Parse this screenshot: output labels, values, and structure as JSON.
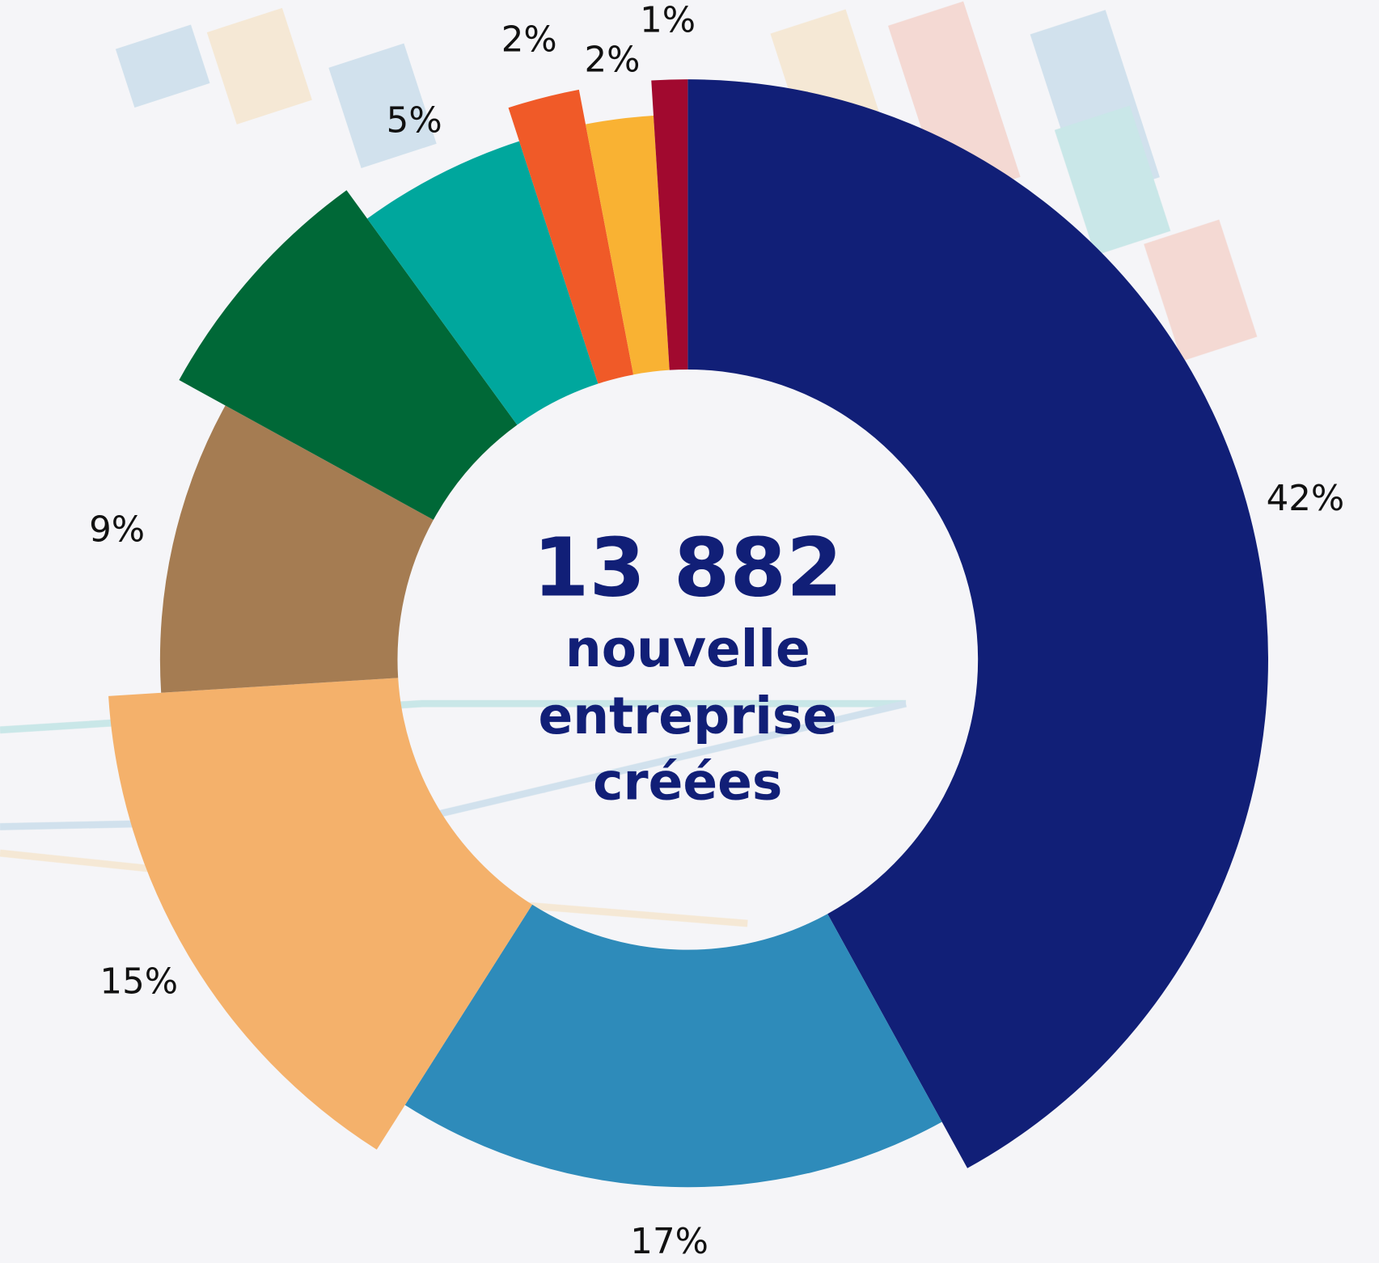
{
  "chart_data": {
    "type": "donut",
    "values": [
      42,
      17,
      15,
      9,
      7,
      5,
      2,
      2,
      1
    ],
    "value_labels": [
      "42%",
      "17%",
      "15%",
      "9%",
      null,
      "5%",
      "2%",
      "2%",
      "1%"
    ],
    "colors": [
      "#111f77",
      "#2e8bba",
      "#f4b16b",
      "#a57c52",
      "#006837",
      "#00a79d",
      "#f05a28",
      "#f9b233",
      "#a1092f"
    ],
    "annotations": [
      "13 882",
      "nouvelle",
      "entreprise",
      "créées"
    ]
  }
}
